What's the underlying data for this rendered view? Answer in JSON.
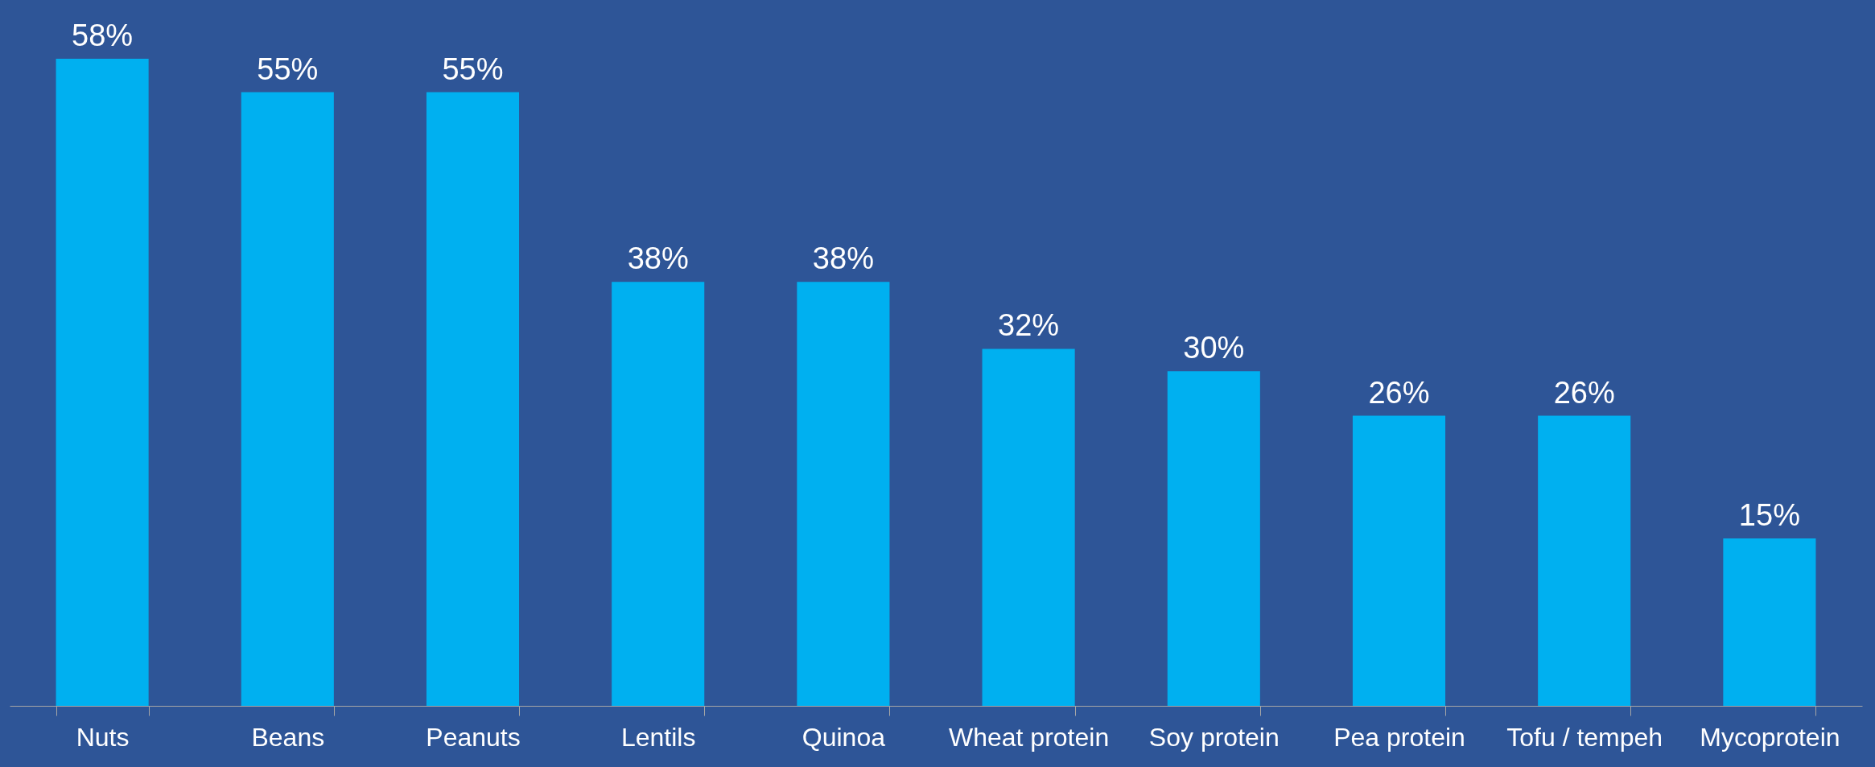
{
  "chart_data": {
    "type": "bar",
    "categories": [
      "Nuts",
      "Beans",
      "Peanuts",
      "Lentils",
      "Quinoa",
      "Wheat protein",
      "Soy protein",
      "Pea protein",
      "Tofu / tempeh",
      "Mycoprotein"
    ],
    "values": [
      58,
      55,
      55,
      38,
      38,
      32,
      30,
      26,
      26,
      15
    ],
    "value_labels": [
      "58%",
      "55%",
      "55%",
      "38%",
      "38%",
      "32%",
      "30%",
      "26%",
      "26%",
      "15%"
    ],
    "color": "#00b0f0"
  }
}
